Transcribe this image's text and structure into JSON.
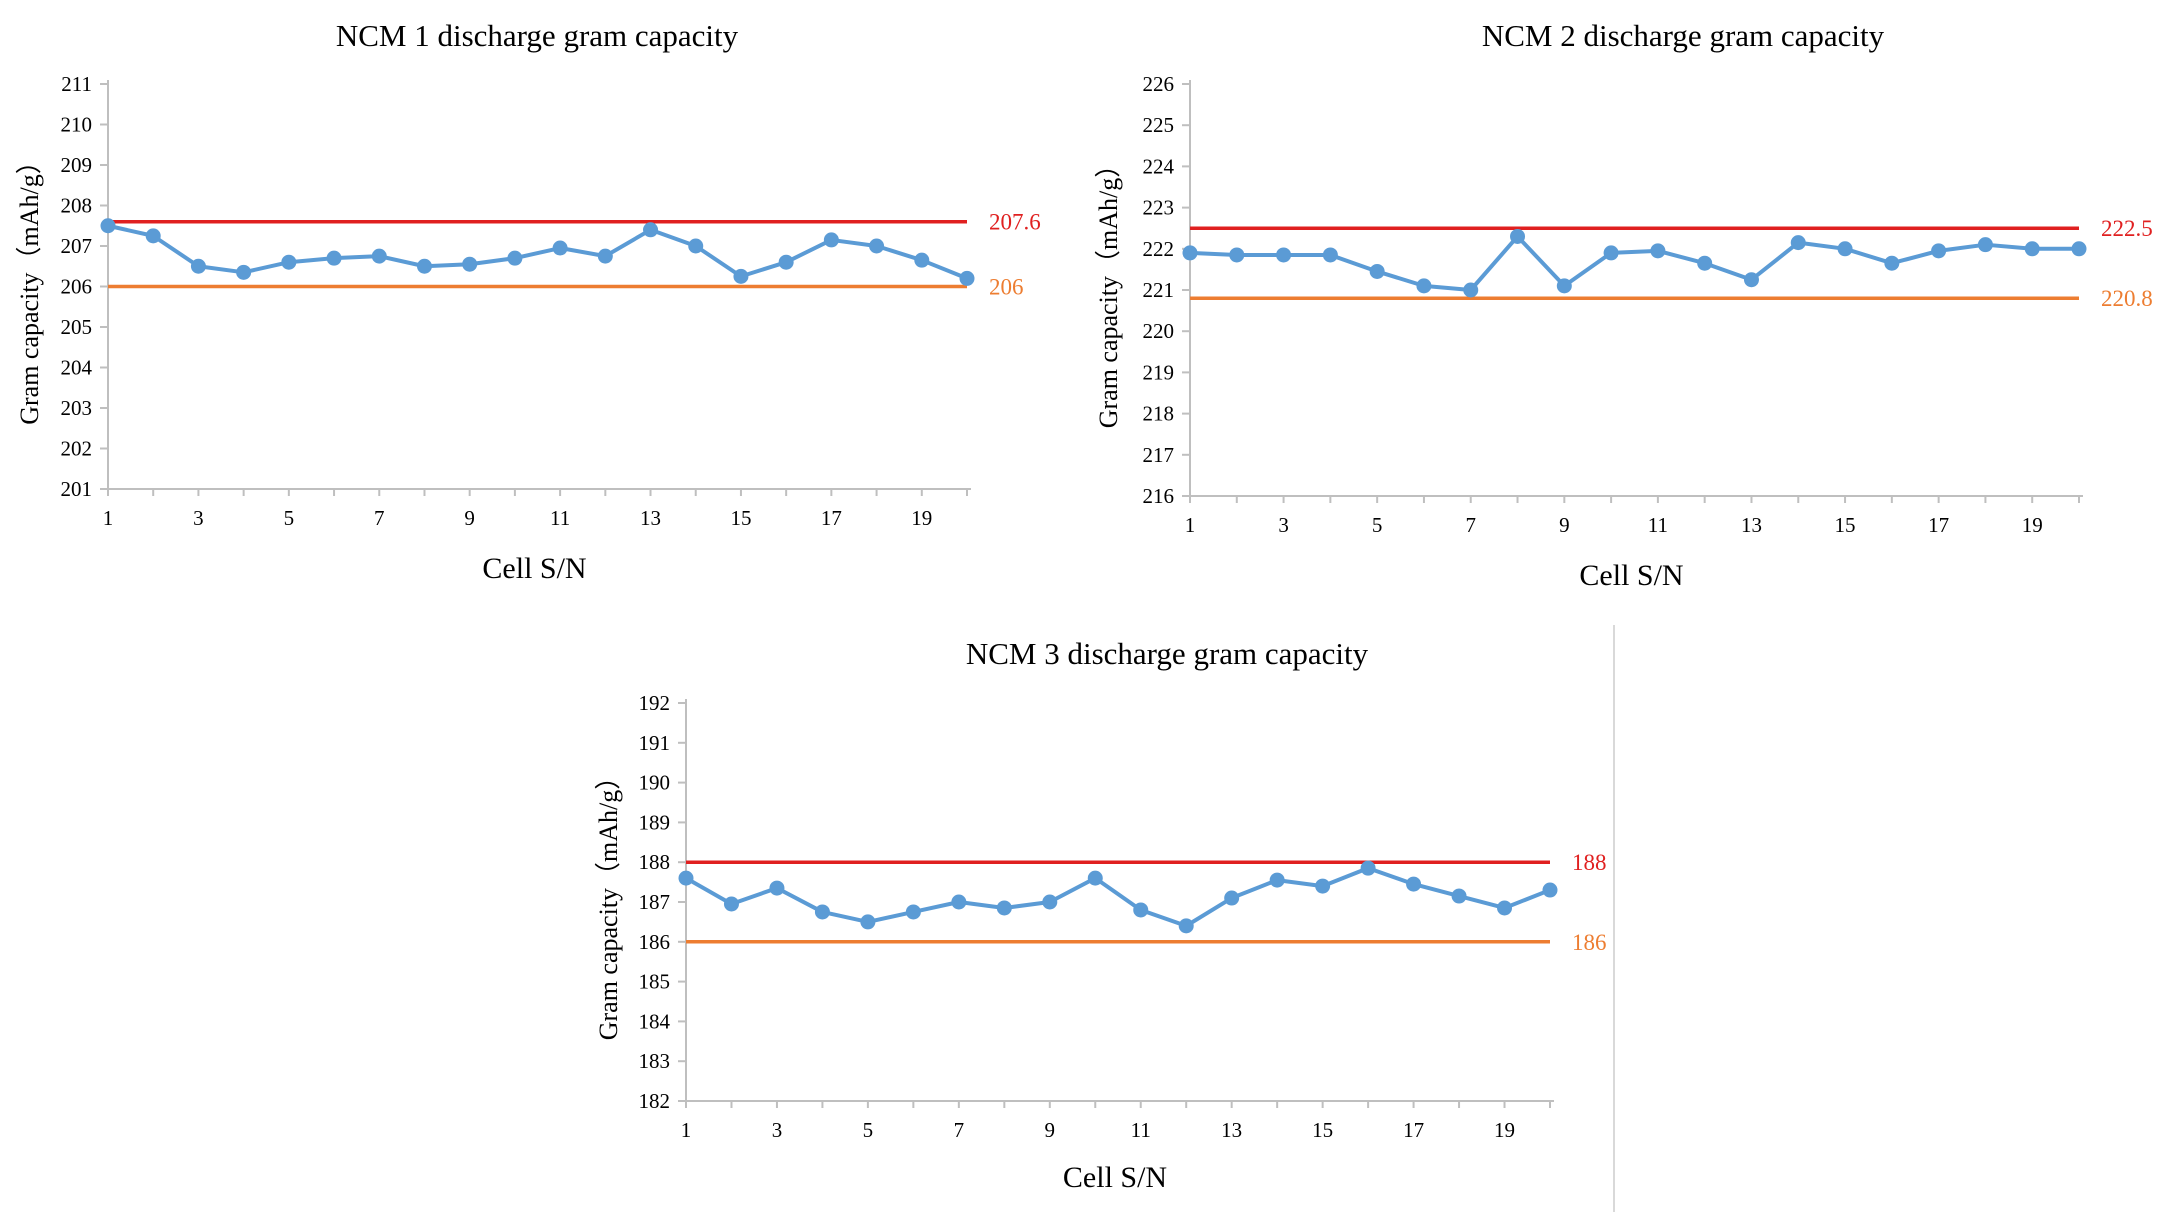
{
  "colors": {
    "series": "#5b9bd5",
    "upper_limit": "#e02020",
    "lower_limit": "#ed7d31",
    "axis": "#bfbfbf",
    "text": "#000000"
  },
  "chart_data": [
    {
      "type": "line",
      "title": "NCM 1 discharge gram capacity",
      "xlabel": "Cell S/N",
      "ylabel": "Gram capacity（mAh/g）",
      "x": [
        1,
        2,
        3,
        4,
        5,
        6,
        7,
        8,
        9,
        10,
        11,
        12,
        13,
        14,
        15,
        16,
        17,
        18,
        19,
        20
      ],
      "x_tick_labels": [
        "1",
        "3",
        "5",
        "7",
        "9",
        "11",
        "13",
        "15",
        "17",
        "19"
      ],
      "ylim": [
        201,
        211
      ],
      "y_ticks": [
        201,
        202,
        203,
        204,
        205,
        206,
        207,
        208,
        209,
        210,
        211
      ],
      "series": [
        {
          "name": "Gram capacity",
          "values": [
            207.5,
            207.25,
            206.5,
            206.35,
            206.6,
            206.7,
            206.75,
            206.5,
            206.55,
            206.7,
            206.95,
            206.75,
            207.4,
            207.0,
            206.25,
            206.6,
            207.15,
            207.0,
            206.65,
            206.2
          ]
        }
      ],
      "limits": [
        {
          "name": "upper",
          "value": 207.6,
          "label": "207.6"
        },
        {
          "name": "lower",
          "value": 206,
          "label": "206"
        }
      ]
    },
    {
      "type": "line",
      "title": "NCM 2 discharge gram capacity",
      "xlabel": "Cell S/N",
      "ylabel": "Gram capacity（mAh/g）",
      "x": [
        1,
        2,
        3,
        4,
        5,
        6,
        7,
        8,
        9,
        10,
        11,
        12,
        13,
        14,
        15,
        16,
        17,
        18,
        19,
        20
      ],
      "x_tick_labels": [
        "1",
        "3",
        "5",
        "7",
        "9",
        "11",
        "13",
        "15",
        "17",
        "19"
      ],
      "ylim": [
        216,
        226
      ],
      "y_ticks": [
        216,
        217,
        218,
        219,
        220,
        221,
        222,
        223,
        224,
        225,
        226
      ],
      "series": [
        {
          "name": "Gram capacity",
          "values": [
            221.9,
            221.85,
            221.85,
            221.85,
            221.45,
            221.1,
            221.0,
            222.3,
            221.1,
            221.9,
            221.95,
            221.65,
            221.25,
            222.15,
            222.0,
            221.65,
            221.95,
            222.1,
            222.0,
            222.0
          ]
        }
      ],
      "limits": [
        {
          "name": "upper",
          "value": 222.5,
          "label": "222.5"
        },
        {
          "name": "lower",
          "value": 220.8,
          "label": "220.8"
        }
      ]
    },
    {
      "type": "line",
      "title": "NCM 3 discharge gram capacity",
      "xlabel": "Cell S/N",
      "ylabel": "Gram capacity（mAh/g）",
      "x": [
        1,
        2,
        3,
        4,
        5,
        6,
        7,
        8,
        9,
        10,
        11,
        12,
        13,
        14,
        15,
        16,
        17,
        18,
        19,
        20
      ],
      "x_tick_labels": [
        "1",
        "3",
        "5",
        "7",
        "9",
        "11",
        "13",
        "15",
        "17",
        "19"
      ],
      "ylim": [
        182,
        192
      ],
      "y_ticks": [
        182,
        183,
        184,
        185,
        186,
        187,
        188,
        189,
        190,
        191,
        192
      ],
      "series": [
        {
          "name": "Gram capacity",
          "values": [
            187.6,
            186.95,
            187.35,
            186.75,
            186.5,
            186.75,
            187.0,
            186.85,
            187.0,
            187.6,
            186.8,
            186.4,
            187.1,
            187.55,
            187.4,
            187.85,
            187.45,
            187.15,
            186.85,
            187.3
          ]
        }
      ],
      "limits": [
        {
          "name": "upper",
          "value": 188,
          "label": "188"
        },
        {
          "name": "lower",
          "value": 186,
          "label": "186"
        }
      ]
    }
  ]
}
